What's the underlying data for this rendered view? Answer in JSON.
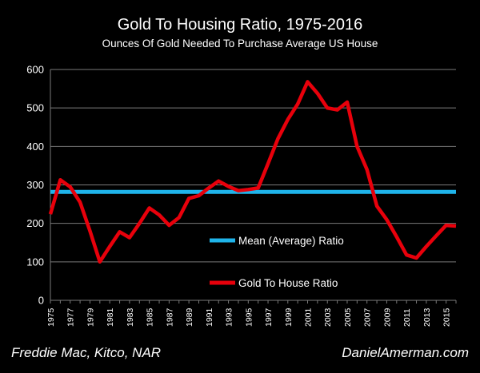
{
  "chart_data": {
    "type": "line",
    "title": "Gold To  Housing Ratio, 1975-2016",
    "subtitle": "Ounces Of Gold Needed To Purchase Average US House",
    "xlabel": "",
    "ylabel": "",
    "ylim": [
      0,
      600
    ],
    "yticks": [
      0,
      100,
      200,
      300,
      400,
      500,
      600
    ],
    "xlim": [
      1975,
      2016
    ],
    "xticks": [
      1975,
      1977,
      1979,
      1981,
      1983,
      1985,
      1987,
      1989,
      1991,
      1993,
      1995,
      1997,
      1999,
      2001,
      2003,
      2005,
      2007,
      2009,
      2011,
      2013,
      2015
    ],
    "grid": "horizontal",
    "legend_placement": "center",
    "x": [
      1975,
      1976,
      1977,
      1978,
      1979,
      1980,
      1981,
      1982,
      1983,
      1984,
      1985,
      1986,
      1987,
      1988,
      1989,
      1990,
      1991,
      1992,
      1993,
      1994,
      1995,
      1996,
      1997,
      1998,
      1999,
      2000,
      2001,
      2002,
      2003,
      2004,
      2005,
      2006,
      2007,
      2008,
      2009,
      2010,
      2011,
      2012,
      2013,
      2014,
      2015,
      2016
    ],
    "series": [
      {
        "name": "Mean (Average) Ratio",
        "color": "#1fb4ea",
        "values": [
          282,
          282,
          282,
          282,
          282,
          282,
          282,
          282,
          282,
          282,
          282,
          282,
          282,
          282,
          282,
          282,
          282,
          282,
          282,
          282,
          282,
          282,
          282,
          282,
          282,
          282,
          282,
          282,
          282,
          282,
          282,
          282,
          282,
          282,
          282,
          282,
          282,
          282,
          282,
          282,
          282,
          282
        ]
      },
      {
        "name": "Gold To House Ratio",
        "color": "#e8000b",
        "values": [
          224,
          313,
          295,
          255,
          180,
          100,
          140,
          178,
          163,
          200,
          240,
          222,
          195,
          215,
          265,
          272,
          292,
          310,
          296,
          285,
          288,
          292,
          355,
          420,
          470,
          510,
          568,
          538,
          500,
          495,
          515,
          400,
          340,
          245,
          210,
          165,
          118,
          110,
          140,
          168,
          195,
          193
        ]
      }
    ]
  },
  "footer": {
    "source": "Freddie Mac, Kitco, NAR",
    "site": "DanielAmerman.com"
  }
}
